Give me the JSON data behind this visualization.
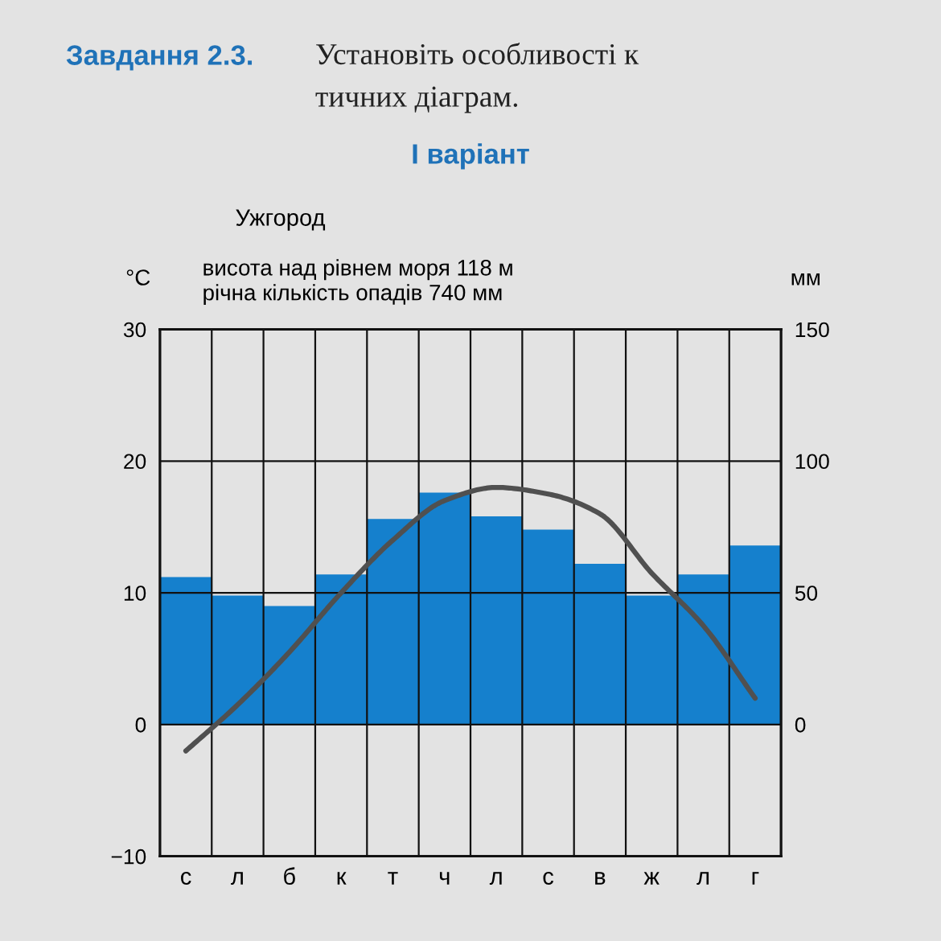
{
  "chart_data": {
    "type": "bar",
    "title": "Ужгород",
    "subtitle": "висота над рівнем моря 118 м\nрічна кількість опадів 740 мм",
    "ylabel": "°C",
    "y2label": "мм",
    "annotations": [
      "Завдання 2.3.",
      "Установіть особливості к",
      "тичних діаграм.",
      "І варіант"
    ],
    "categories": [
      "с",
      "л",
      "б",
      "к",
      "т",
      "ч",
      "л",
      "с",
      "в",
      "ж",
      "л",
      "г"
    ],
    "series": [
      {
        "axis": "y2",
        "color": "#1580cd",
        "values": [
          56,
          49,
          45,
          57,
          78,
          88,
          79,
          74,
          61,
          49,
          57,
          68
        ]
      },
      {
        "type": "line",
        "axis": "y",
        "color": "#505050",
        "values": [
          -2,
          1.5,
          5.5,
          10,
          14,
          17,
          18,
          17.5,
          16,
          11.5,
          7.5,
          2
        ]
      }
    ],
    "ylim": [
      -10,
      30
    ],
    "yticks": [
      {
        "value": -10,
        "label": "−10"
      },
      0,
      10,
      20,
      30
    ],
    "y2lim": [
      -50,
      150
    ],
    "y2ticks": [
      0,
      50,
      100,
      150
    ],
    "grid": true
  }
}
